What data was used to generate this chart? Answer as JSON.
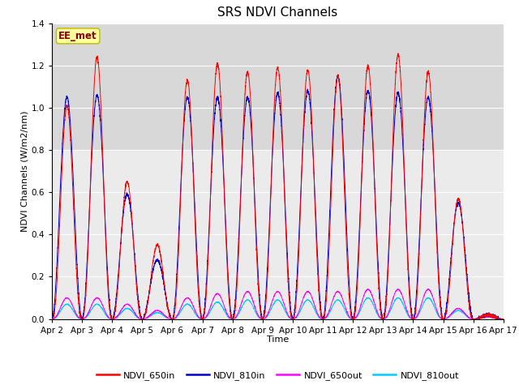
{
  "title": "SRS NDVI Channels",
  "xlabel": "Time",
  "ylabel": "NDVI Channels (W/m2/nm)",
  "ylim": [
    0,
    1.4
  ],
  "xtick_labels": [
    "Apr 2",
    "Apr 3",
    "Apr 4",
    "Apr 5",
    "Apr 6",
    "Apr 7",
    "Apr 8",
    "Apr 9",
    "Apr 10",
    "Apr 11",
    "Apr 12",
    "Apr 13",
    "Apr 14",
    "Apr 15",
    "Apr 16",
    "Apr 17"
  ],
  "shaded_region": [
    0.8,
    1.4
  ],
  "shaded_color": "#d8d8d8",
  "legend_entries": [
    "NDVI_650in",
    "NDVI_810in",
    "NDVI_650out",
    "NDVI_810out"
  ],
  "line_colors": [
    "#ff0000",
    "#0000cc",
    "#ff00ff",
    "#00ccff"
  ],
  "EE_met_label": "EE_met",
  "EE_met_color": "#880000",
  "EE_met_bg": "#ffffa0",
  "background_color": "#ebebeb",
  "grid_color": "#ffffff",
  "title_fontsize": 11,
  "axis_fontsize": 8,
  "tick_fontsize": 7.5,
  "num_days": 15,
  "points_per_day": 288,
  "peak_650in": [
    1.01,
    1.24,
    0.65,
    0.35,
    1.13,
    1.21,
    1.17,
    1.19,
    1.18,
    1.15,
    1.2,
    1.25,
    1.17,
    0.57,
    0.02
  ],
  "peak_810in": [
    1.05,
    1.06,
    0.59,
    0.28,
    1.05,
    1.05,
    1.05,
    1.07,
    1.08,
    1.15,
    1.08,
    1.07,
    1.05,
    0.55,
    0.02
  ],
  "peak_650out": [
    0.1,
    0.1,
    0.07,
    0.04,
    0.1,
    0.12,
    0.13,
    0.13,
    0.13,
    0.13,
    0.14,
    0.14,
    0.14,
    0.05,
    0.01
  ],
  "peak_810out": [
    0.07,
    0.07,
    0.05,
    0.03,
    0.07,
    0.08,
    0.09,
    0.09,
    0.09,
    0.09,
    0.1,
    0.1,
    0.1,
    0.04,
    0.01
  ]
}
